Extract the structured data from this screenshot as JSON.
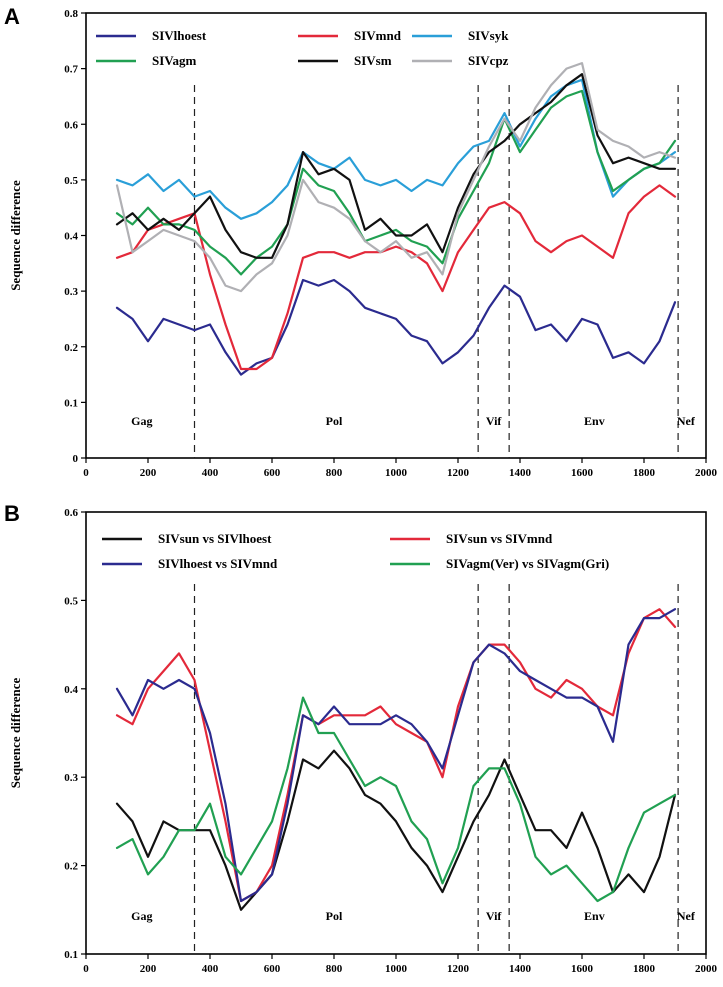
{
  "colors": {
    "navy": "#2b2b8f",
    "red": "#e3293a",
    "blue": "#2a9fd8",
    "green": "#21a052",
    "black": "#111111",
    "gray": "#b0b0b4"
  },
  "chart_data": [
    {
      "panel": "A",
      "type": "line",
      "xlabel": "",
      "ylabel": "Sequence difference",
      "xlim": [
        0,
        2000
      ],
      "ylim": [
        0,
        0.8
      ],
      "xticks": [
        0,
        200,
        400,
        600,
        800,
        1000,
        1200,
        1400,
        1600,
        1800,
        2000
      ],
      "yticks": [
        0,
        0.1,
        0.2,
        0.3,
        0.4,
        0.5,
        0.6,
        0.7,
        0.8
      ],
      "boundaries": [
        350,
        1265,
        1365,
        1910
      ],
      "regions": [
        {
          "label": "Gag",
          "x": 180
        },
        {
          "label": "Pol",
          "x": 800
        },
        {
          "label": "Vif",
          "x": 1315
        },
        {
          "label": "Env",
          "x": 1640
        },
        {
          "label": "Nef",
          "x": 1935
        }
      ],
      "series": [
        {
          "name": "SIVlhoest",
          "color": "navy",
          "x": [
            100,
            150,
            200,
            250,
            300,
            350,
            400,
            450,
            500,
            550,
            600,
            650,
            700,
            750,
            800,
            850,
            900,
            950,
            1000,
            1050,
            1100,
            1150,
            1200,
            1250,
            1300,
            1350,
            1400,
            1450,
            1500,
            1550,
            1600,
            1650,
            1700,
            1750,
            1800,
            1850,
            1900
          ],
          "values": [
            0.27,
            0.25,
            0.21,
            0.25,
            0.24,
            0.23,
            0.24,
            0.19,
            0.15,
            0.17,
            0.18,
            0.24,
            0.32,
            0.31,
            0.32,
            0.3,
            0.27,
            0.26,
            0.25,
            0.22,
            0.21,
            0.17,
            0.19,
            0.22,
            0.27,
            0.31,
            0.29,
            0.23,
            0.24,
            0.21,
            0.25,
            0.24,
            0.18,
            0.19,
            0.17,
            0.21,
            0.28
          ]
        },
        {
          "name": "SIVmnd",
          "color": "red",
          "x": [
            100,
            150,
            200,
            250,
            300,
            350,
            400,
            450,
            500,
            550,
            600,
            650,
            700,
            750,
            800,
            850,
            900,
            950,
            1000,
            1050,
            1100,
            1150,
            1200,
            1250,
            1300,
            1350,
            1400,
            1450,
            1500,
            1550,
            1600,
            1650,
            1700,
            1750,
            1800,
            1850,
            1900
          ],
          "values": [
            0.36,
            0.37,
            0.41,
            0.42,
            0.43,
            0.44,
            0.33,
            0.24,
            0.16,
            0.16,
            0.18,
            0.26,
            0.36,
            0.37,
            0.37,
            0.36,
            0.37,
            0.37,
            0.38,
            0.37,
            0.35,
            0.3,
            0.37,
            0.41,
            0.45,
            0.46,
            0.44,
            0.39,
            0.37,
            0.39,
            0.4,
            0.38,
            0.36,
            0.44,
            0.47,
            0.49,
            0.47
          ]
        },
        {
          "name": "SIVsyk",
          "color": "blue",
          "x": [
            100,
            150,
            200,
            250,
            300,
            350,
            400,
            450,
            500,
            550,
            600,
            650,
            700,
            750,
            800,
            850,
            900,
            950,
            1000,
            1050,
            1100,
            1150,
            1200,
            1250,
            1300,
            1350,
            1400,
            1450,
            1500,
            1550,
            1600,
            1650,
            1700,
            1750,
            1800,
            1850,
            1900
          ],
          "values": [
            0.5,
            0.49,
            0.51,
            0.48,
            0.5,
            0.47,
            0.48,
            0.45,
            0.43,
            0.44,
            0.46,
            0.49,
            0.55,
            0.53,
            0.52,
            0.54,
            0.5,
            0.49,
            0.5,
            0.48,
            0.5,
            0.49,
            0.53,
            0.56,
            0.57,
            0.62,
            0.56,
            0.61,
            0.65,
            0.67,
            0.68,
            0.55,
            0.47,
            0.5,
            0.52,
            0.53,
            0.55
          ]
        },
        {
          "name": "SIVagm",
          "color": "green",
          "x": [
            100,
            150,
            200,
            250,
            300,
            350,
            400,
            450,
            500,
            550,
            600,
            650,
            700,
            750,
            800,
            850,
            900,
            950,
            1000,
            1050,
            1100,
            1150,
            1200,
            1250,
            1300,
            1350,
            1400,
            1450,
            1500,
            1550,
            1600,
            1650,
            1700,
            1750,
            1800,
            1850,
            1900
          ],
          "values": [
            0.44,
            0.42,
            0.45,
            0.42,
            0.42,
            0.41,
            0.38,
            0.36,
            0.33,
            0.36,
            0.38,
            0.42,
            0.52,
            0.49,
            0.48,
            0.44,
            0.39,
            0.4,
            0.41,
            0.39,
            0.38,
            0.35,
            0.43,
            0.48,
            0.53,
            0.61,
            0.55,
            0.59,
            0.63,
            0.65,
            0.66,
            0.55,
            0.48,
            0.5,
            0.52,
            0.53,
            0.57
          ]
        },
        {
          "name": "SIVsm",
          "color": "black",
          "x": [
            100,
            150,
            200,
            250,
            300,
            350,
            400,
            450,
            500,
            550,
            600,
            650,
            700,
            750,
            800,
            850,
            900,
            950,
            1000,
            1050,
            1100,
            1150,
            1200,
            1250,
            1300,
            1350,
            1400,
            1450,
            1500,
            1550,
            1600,
            1650,
            1700,
            1750,
            1800,
            1850,
            1900
          ],
          "values": [
            0.42,
            0.44,
            0.41,
            0.43,
            0.41,
            0.44,
            0.47,
            0.41,
            0.37,
            0.36,
            0.36,
            0.42,
            0.55,
            0.51,
            0.52,
            0.5,
            0.41,
            0.43,
            0.4,
            0.4,
            0.42,
            0.37,
            0.45,
            0.51,
            0.55,
            0.57,
            0.6,
            0.62,
            0.64,
            0.67,
            0.69,
            0.58,
            0.53,
            0.54,
            0.53,
            0.52,
            0.52
          ]
        },
        {
          "name": "SIVcpz",
          "color": "gray",
          "x": [
            100,
            150,
            200,
            250,
            300,
            350,
            400,
            450,
            500,
            550,
            600,
            650,
            700,
            750,
            800,
            850,
            900,
            950,
            1000,
            1050,
            1100,
            1150,
            1200,
            1250,
            1300,
            1350,
            1400,
            1450,
            1500,
            1550,
            1600,
            1650,
            1700,
            1750,
            1800,
            1850,
            1900
          ],
          "values": [
            0.49,
            0.37,
            0.39,
            0.41,
            0.4,
            0.39,
            0.36,
            0.31,
            0.3,
            0.33,
            0.35,
            0.4,
            0.5,
            0.46,
            0.45,
            0.43,
            0.39,
            0.37,
            0.39,
            0.36,
            0.37,
            0.33,
            0.44,
            0.5,
            0.56,
            0.61,
            0.57,
            0.63,
            0.67,
            0.7,
            0.71,
            0.59,
            0.57,
            0.56,
            0.54,
            0.55,
            0.54
          ]
        }
      ]
    },
    {
      "panel": "B",
      "type": "line",
      "xlabel": "",
      "ylabel": "Sequence difference",
      "xlim": [
        0,
        2000
      ],
      "ylim": [
        0.1,
        0.6
      ],
      "xticks": [
        0,
        200,
        400,
        600,
        800,
        1000,
        1200,
        1400,
        1600,
        1800,
        2000
      ],
      "yticks": [
        0.1,
        0.2,
        0.3,
        0.4,
        0.5,
        0.6
      ],
      "boundaries": [
        350,
        1265,
        1365,
        1910
      ],
      "regions": [
        {
          "label": "Gag",
          "x": 180
        },
        {
          "label": "Pol",
          "x": 800
        },
        {
          "label": "Vif",
          "x": 1315
        },
        {
          "label": "Env",
          "x": 1640
        },
        {
          "label": "Nef",
          "x": 1935
        }
      ],
      "series": [
        {
          "name": "SIVsun vs SIVlhoest",
          "color": "black",
          "x": [
            100,
            150,
            200,
            250,
            300,
            350,
            400,
            450,
            500,
            550,
            600,
            650,
            700,
            750,
            800,
            850,
            900,
            950,
            1000,
            1050,
            1100,
            1150,
            1200,
            1250,
            1300,
            1350,
            1400,
            1450,
            1500,
            1550,
            1600,
            1650,
            1700,
            1750,
            1800,
            1850,
            1900
          ],
          "values": [
            0.27,
            0.25,
            0.21,
            0.25,
            0.24,
            0.24,
            0.24,
            0.2,
            0.15,
            0.17,
            0.19,
            0.25,
            0.32,
            0.31,
            0.33,
            0.31,
            0.28,
            0.27,
            0.25,
            0.22,
            0.2,
            0.17,
            0.21,
            0.25,
            0.28,
            0.32,
            0.28,
            0.24,
            0.24,
            0.22,
            0.26,
            0.22,
            0.17,
            0.19,
            0.17,
            0.21,
            0.28
          ]
        },
        {
          "name": "SIVsun vs SIVmnd",
          "color": "red",
          "x": [
            100,
            150,
            200,
            250,
            300,
            350,
            400,
            450,
            500,
            550,
            600,
            650,
            700,
            750,
            800,
            850,
            900,
            950,
            1000,
            1050,
            1100,
            1150,
            1200,
            1250,
            1300,
            1350,
            1400,
            1450,
            1500,
            1550,
            1600,
            1650,
            1700,
            1750,
            1800,
            1850,
            1900
          ],
          "values": [
            0.37,
            0.36,
            0.4,
            0.42,
            0.44,
            0.41,
            0.33,
            0.25,
            0.16,
            0.17,
            0.2,
            0.28,
            0.37,
            0.36,
            0.37,
            0.37,
            0.37,
            0.38,
            0.36,
            0.35,
            0.34,
            0.3,
            0.38,
            0.43,
            0.45,
            0.45,
            0.43,
            0.4,
            0.39,
            0.41,
            0.4,
            0.38,
            0.37,
            0.44,
            0.48,
            0.49,
            0.47
          ]
        },
        {
          "name": "SIVlhoest vs SIVmnd",
          "color": "navy",
          "x": [
            100,
            150,
            200,
            250,
            300,
            350,
            400,
            450,
            500,
            550,
            600,
            650,
            700,
            750,
            800,
            850,
            900,
            950,
            1000,
            1050,
            1100,
            1150,
            1200,
            1250,
            1300,
            1350,
            1400,
            1450,
            1500,
            1550,
            1600,
            1650,
            1700,
            1750,
            1800,
            1850,
            1900
          ],
          "values": [
            0.4,
            0.37,
            0.41,
            0.4,
            0.41,
            0.4,
            0.35,
            0.27,
            0.16,
            0.17,
            0.19,
            0.27,
            0.37,
            0.36,
            0.38,
            0.36,
            0.36,
            0.36,
            0.37,
            0.36,
            0.34,
            0.31,
            0.37,
            0.43,
            0.45,
            0.44,
            0.42,
            0.41,
            0.4,
            0.39,
            0.39,
            0.38,
            0.34,
            0.45,
            0.48,
            0.48,
            0.49
          ]
        },
        {
          "name": "SIVagm(Ver) vs SIVagm(Gri)",
          "color": "green",
          "x": [
            100,
            150,
            200,
            250,
            300,
            350,
            400,
            450,
            500,
            550,
            600,
            650,
            700,
            750,
            800,
            850,
            900,
            950,
            1000,
            1050,
            1100,
            1150,
            1200,
            1250,
            1300,
            1350,
            1400,
            1450,
            1500,
            1550,
            1600,
            1650,
            1700,
            1750,
            1800,
            1850,
            1900
          ],
          "values": [
            0.22,
            0.23,
            0.19,
            0.21,
            0.24,
            0.24,
            0.27,
            0.21,
            0.19,
            0.22,
            0.25,
            0.31,
            0.39,
            0.35,
            0.35,
            0.32,
            0.29,
            0.3,
            0.29,
            0.25,
            0.23,
            0.18,
            0.22,
            0.29,
            0.31,
            0.31,
            0.27,
            0.21,
            0.19,
            0.2,
            0.18,
            0.16,
            0.17,
            0.22,
            0.26,
            0.27,
            0.28
          ]
        }
      ]
    }
  ]
}
